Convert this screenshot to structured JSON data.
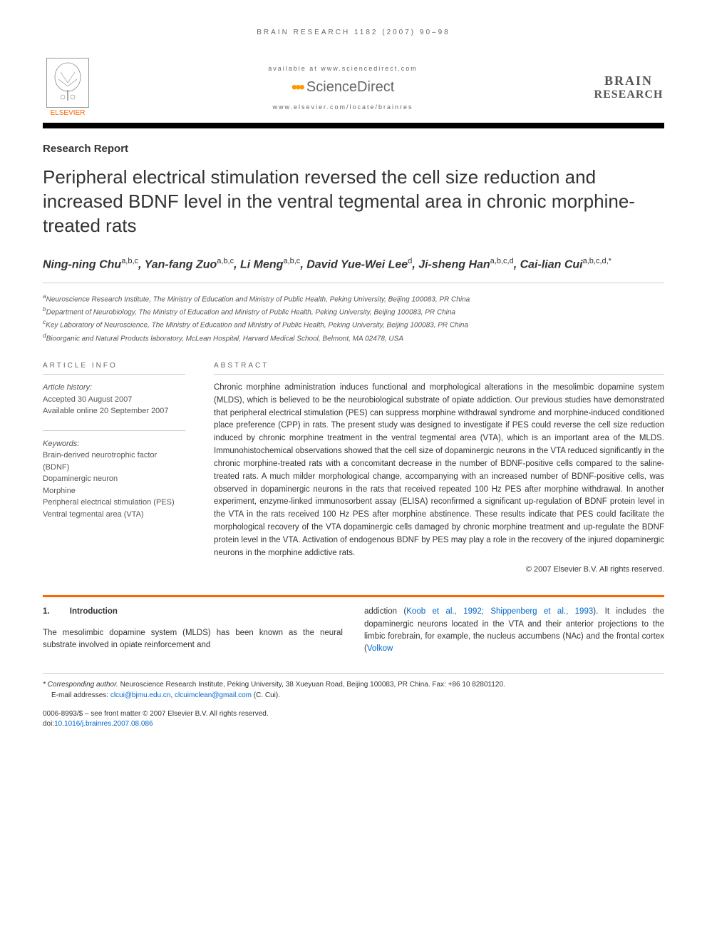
{
  "running_header": "BRAIN RESEARCH 1182 (2007) 90–98",
  "banner": {
    "elsevier": "ELSEVIER",
    "available": "available at www.sciencedirect.com",
    "sciencedirect": "ScienceDirect",
    "locate_url": "www.elsevier.com/locate/brainres",
    "journal_line1": "BRAIN",
    "journal_line2": "RESEARCH"
  },
  "article_type": "Research Report",
  "title": "Peripheral electrical stimulation reversed the cell size reduction and increased BDNF level in the ventral tegmental area in chronic morphine-treated rats",
  "authors_html": "Ning-ning Chu<sup>a,b,c</sup>, Yan-fang Zuo<sup>a,b,c</sup>, Li Meng<sup>a,b,c</sup>, David Yue-Wei Lee<sup>d</sup>, Ji-sheng Han<sup>a,b,c,d</sup>, Cai-lian Cui<sup>a,b,c,d,*</sup>",
  "affiliations": [
    "aNeuroscience Research Institute, The Ministry of Education and Ministry of Public Health, Peking University, Beijing 100083, PR China",
    "bDepartment of Neurobiology, The Ministry of Education and Ministry of Public Health, Peking University, Beijing 100083, PR China",
    "cKey Laboratory of Neuroscience, The Ministry of Education and Ministry of Public Health, Peking University, Beijing 100083, PR China",
    "dBioorganic and Natural Products laboratory, McLean Hospital, Harvard Medical School, Belmont, MA 02478, USA"
  ],
  "info_heading": "ARTICLE INFO",
  "abstract_heading": "ABSTRACT",
  "history_label": "Article history:",
  "history_lines": [
    "Accepted 30 August 2007",
    "Available online 20 September 2007"
  ],
  "keywords_label": "Keywords:",
  "keywords": [
    "Brain-derived neurotrophic factor (BDNF)",
    "Dopaminergic neuron",
    "Morphine",
    "Peripheral electrical stimulation (PES)",
    "Ventral tegmental area (VTA)"
  ],
  "abstract": "Chronic morphine administration induces functional and morphological alterations in the mesolimbic dopamine system (MLDS), which is believed to be the neurobiological substrate of opiate addiction. Our previous studies have demonstrated that peripheral electrical stimulation (PES) can suppress morphine withdrawal syndrome and morphine-induced conditioned place preference (CPP) in rats. The present study was designed to investigate if PES could reverse the cell size reduction induced by chronic morphine treatment in the ventral tegmental area (VTA), which is an important area of the MLDS. Immunohistochemical observations showed that the cell size of dopaminergic neurons in the VTA reduced significantly in the chronic morphine-treated rats with a concomitant decrease in the number of BDNF-positive cells compared to the saline-treated rats. A much milder morphological change, accompanying with an increased number of BDNF-positive cells, was observed in dopaminergic neurons in the rats that received repeated 100 Hz PES after morphine withdrawal. In another experiment, enzyme-linked immunosorbent assay (ELISA) reconfirmed a significant up-regulation of BDNF protein level in the VTA in the rats received 100 Hz PES after morphine abstinence. These results indicate that PES could facilitate the morphological recovery of the VTA dopaminergic cells damaged by chronic morphine treatment and up-regulate the BDNF protein level in the VTA. Activation of endogenous BDNF by PES may play a role in the recovery of the injured dopaminergic neurons in the morphine addictive rats.",
  "copyright": "© 2007 Elsevier B.V. All rights reserved.",
  "section1": {
    "num": "1.",
    "title": "Introduction",
    "col1": "The mesolimbic dopamine system (MLDS) has been known as the neural substrate involved in opiate reinforcement and",
    "col2_pre": "addiction (",
    "col2_cite": "Koob et al., 1992; Shippenberg et al., 1993",
    "col2_post": "). It includes the dopaminergic neurons located in the VTA and their anterior projections to the limbic forebrain, for example, the nucleus accumbens (NAc) and the frontal cortex (",
    "col2_cite2": "Volkow"
  },
  "footnote": {
    "corr_label": "* Corresponding author.",
    "corr_text": " Neuroscience Research Institute, Peking University, 38 Xueyuan Road, Beijing 100083, PR China. Fax: +86 10 82801120.",
    "email_label": "E-mail addresses: ",
    "email1": "clcui@bjmu.edu.cn",
    "email_sep": ", ",
    "email2": "clcuimclean@gmail.com",
    "email_tail": " (C. Cui)."
  },
  "doi": {
    "line1": "0006-8993/$ – see front matter © 2007 Elsevier B.V. All rights reserved.",
    "line2_label": "doi:",
    "line2_link": "10.1016/j.brainres.2007.08.086"
  },
  "colors": {
    "orange": "#ff6600",
    "link": "#0066cc",
    "text": "#333333",
    "gray": "#666666"
  }
}
